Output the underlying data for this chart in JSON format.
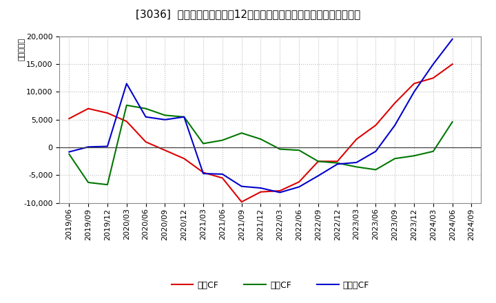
{
  "title": "[3036]  キャッシュフローの12か月移動合計の対前年同期増減額の推移",
  "ylabel": "（百万円）",
  "background_color": "#ffffff",
  "plot_bg_color": "#ffffff",
  "ylim": [
    -10000,
    20000
  ],
  "yticks": [
    -10000,
    -5000,
    0,
    5000,
    10000,
    15000,
    20000
  ],
  "x_labels": [
    "2019/06",
    "2019/09",
    "2019/12",
    "2020/03",
    "2020/06",
    "2020/09",
    "2020/12",
    "2021/03",
    "2021/06",
    "2021/09",
    "2021/12",
    "2022/03",
    "2022/06",
    "2022/09",
    "2022/12",
    "2023/03",
    "2023/06",
    "2023/09",
    "2023/12",
    "2024/03",
    "2024/06",
    "2024/09"
  ],
  "operating_cf": [
    5200,
    7000,
    6200,
    4700,
    1000,
    -500,
    -2000,
    -4500,
    -5500,
    -9800,
    -8000,
    -7800,
    -6200,
    -2500,
    -2500,
    1500,
    4000,
    8000,
    11500,
    12500,
    15000,
    null
  ],
  "investing_cf": [
    -1200,
    -6300,
    -6700,
    7600,
    7000,
    5800,
    5500,
    700,
    1300,
    2600,
    1500,
    -300,
    -500,
    -2500,
    -2800,
    -3500,
    -4000,
    -2000,
    -1500,
    -700,
    4600,
    null
  ],
  "free_cf": [
    -800,
    100,
    200,
    11500,
    5500,
    5000,
    5500,
    -4700,
    -4800,
    -7000,
    -7300,
    -8100,
    -7100,
    -5100,
    -3000,
    -2700,
    -700,
    4000,
    10000,
    15000,
    19500,
    null
  ],
  "line_colors": {
    "operating": "#dd0000",
    "investing": "#007700",
    "free": "#0000cc"
  },
  "legend_labels": [
    "営業CF",
    "投資CF",
    "フリーCF"
  ],
  "grid_color": "#bbbbbb",
  "title_fontsize": 11,
  "tick_fontsize": 8,
  "legend_fontsize": 9
}
